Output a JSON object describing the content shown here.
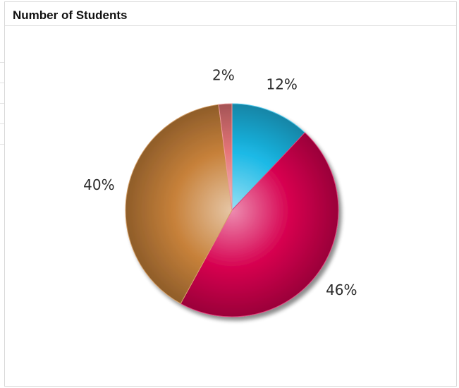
{
  "panel": {
    "title": "Number of Students"
  },
  "chart_data": {
    "type": "pie",
    "title": "Number of Students",
    "slices": [
      {
        "label": "12%",
        "value": 12,
        "color": "#1bb9e6",
        "label_side": "right"
      },
      {
        "label": "46%",
        "value": 46,
        "color": "#d6004f",
        "label_side": "right"
      },
      {
        "label": "40%",
        "value": 40,
        "color": "#c7813a",
        "label_side": "left"
      },
      {
        "label": "2%",
        "value": 2,
        "color": "#e57578",
        "label_side": "left"
      }
    ],
    "start_angle": "top",
    "direction": "clockwise",
    "legend": "none",
    "data_labels": "outside"
  }
}
